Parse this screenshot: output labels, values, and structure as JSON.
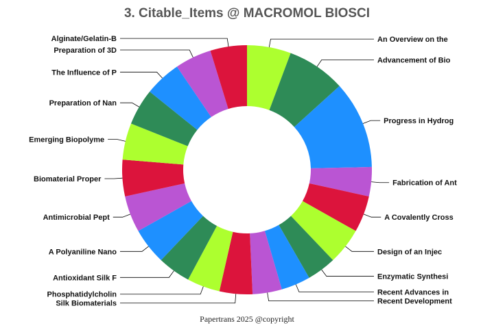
{
  "chart_data": {
    "type": "pie",
    "donut": true,
    "title": "3. Citable_Items @ MACROMOL BIOSCI",
    "slices": [
      {
        "label": "An Overview on the",
        "value": 6,
        "color": "#adff2f"
      },
      {
        "label": "Advancement of Bio",
        "value": 8,
        "color": "#2e8b57"
      },
      {
        "label": "Progress in Hydrog",
        "value": 12,
        "color": "#1e90ff"
      },
      {
        "label": "Fabrication of Ant",
        "value": 4,
        "color": "#ba55d3"
      },
      {
        "label": "A Covalently Cross",
        "value": 5,
        "color": "#dc143c"
      },
      {
        "label": "Design of an Injec",
        "value": 5,
        "color": "#adff2f"
      },
      {
        "label": "Enzymatic Synthesi",
        "value": 4,
        "color": "#2e8b57"
      },
      {
        "label": "Recent Advances in",
        "value": 4,
        "color": "#1e90ff"
      },
      {
        "label": "Recent Development",
        "value": 4,
        "color": "#ba55d3"
      },
      {
        "label": "Silk Biomaterials",
        "value": 4.5,
        "color": "#dc143c"
      },
      {
        "label": "Phosphatidylcholin",
        "value": 4.5,
        "color": "#adff2f"
      },
      {
        "label": "Antioxidant Silk F",
        "value": 4.5,
        "color": "#2e8b57"
      },
      {
        "label": "A Polyaniline Nano",
        "value": 5,
        "color": "#1e90ff"
      },
      {
        "label": "Antimicrobial Pept",
        "value": 5,
        "color": "#ba55d3"
      },
      {
        "label": "Biomaterial Proper",
        "value": 5,
        "color": "#dc143c"
      },
      {
        "label": "Emerging Biopolyme",
        "value": 5,
        "color": "#adff2f"
      },
      {
        "label": "Preparation of Nan",
        "value": 5,
        "color": "#2e8b57"
      },
      {
        "label": "The Influence of P",
        "value": 5,
        "color": "#1e90ff"
      },
      {
        "label": "Preparation of 3D",
        "value": 5,
        "color": "#ba55d3"
      },
      {
        "label": "Alginate/Gelatin-B",
        "value": 5,
        "color": "#dc143c"
      }
    ]
  },
  "footer": "Papertrans 2025 @copyright"
}
